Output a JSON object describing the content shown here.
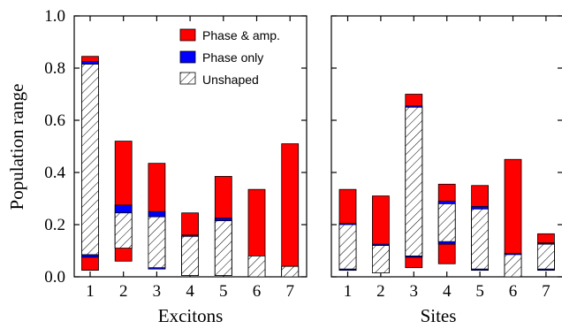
{
  "chart_data": {
    "type": "bar",
    "ylabel": "Population range",
    "ylim": [
      0,
      1.0
    ],
    "yticks": [
      "0.0",
      "0.2",
      "0.4",
      "0.6",
      "0.8",
      "1.0"
    ],
    "grid": false,
    "legend_position": "top-right of left panel",
    "series": [
      {
        "name": "Phase & amp.",
        "color": "#ff0000",
        "pattern": "solid"
      },
      {
        "name": "Phase only",
        "color": "#0000ff",
        "pattern": "solid"
      },
      {
        "name": "Unshaped",
        "color": "#ffffff",
        "pattern": "hatched"
      }
    ],
    "panels": [
      {
        "xlabel": "Excitons",
        "categories": [
          "1",
          "2",
          "3",
          "4",
          "5",
          "6",
          "7"
        ],
        "ranges": {
          "Phase & amp.": [
            [
              0.025,
              0.845
            ],
            [
              0.06,
              0.52
            ],
            [
              0.03,
              0.435
            ],
            [
              0.005,
              0.245
            ],
            [
              0.005,
              0.385
            ],
            [
              0.0,
              0.335
            ],
            [
              0.0,
              0.51
            ]
          ],
          "Phase only": [
            [
              0.075,
              0.825
            ],
            [
              0.11,
              0.275
            ],
            [
              0.03,
              0.25
            ],
            [
              0.005,
              0.16
            ],
            [
              0.005,
              0.225
            ],
            [
              0.0,
              0.08
            ],
            [
              0.0,
              0.04
            ]
          ],
          "Unshaped": [
            [
              0.085,
              0.815
            ],
            [
              0.11,
              0.245
            ],
            [
              0.035,
              0.23
            ],
            [
              0.005,
              0.155
            ],
            [
              0.005,
              0.215
            ],
            [
              0.0,
              0.08
            ],
            [
              0.0,
              0.04
            ]
          ]
        }
      },
      {
        "xlabel": "Sites",
        "categories": [
          "1",
          "2",
          "3",
          "4",
          "5",
          "6",
          "7"
        ],
        "ranges": {
          "Phase & amp.": [
            [
              0.025,
              0.335
            ],
            [
              0.015,
              0.31
            ],
            [
              0.035,
              0.7
            ],
            [
              0.05,
              0.355
            ],
            [
              0.025,
              0.35
            ],
            [
              0.0,
              0.45
            ],
            [
              0.025,
              0.165
            ]
          ],
          "Phase only": [
            [
              0.025,
              0.205
            ],
            [
              0.015,
              0.125
            ],
            [
              0.075,
              0.655
            ],
            [
              0.125,
              0.29
            ],
            [
              0.025,
              0.27
            ],
            [
              0.0,
              0.09
            ],
            [
              0.025,
              0.13
            ]
          ],
          "Unshaped": [
            [
              0.03,
              0.2
            ],
            [
              0.015,
              0.12
            ],
            [
              0.08,
              0.65
            ],
            [
              0.135,
              0.28
            ],
            [
              0.03,
              0.26
            ],
            [
              0.0,
              0.085
            ],
            [
              0.03,
              0.125
            ]
          ]
        }
      }
    ]
  }
}
